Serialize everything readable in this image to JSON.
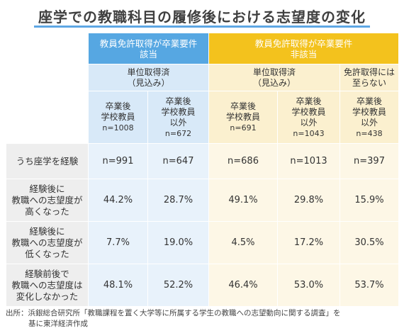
{
  "title": "座学での教職科目の履修後における志望度の変化",
  "groups": {
    "applicable": "教員免許取得が卒業要件\n該当",
    "not_applicable": "教員免許取得が卒業要件\n非該当"
  },
  "subgroups": {
    "blue_obtained": "単位取得済\n（見込み）",
    "yellow_obtained": "単位取得済\n（見込み）",
    "yellow_not": "免許取得には\n至らない"
  },
  "columns": [
    {
      "label": "卒業後\n学校教員",
      "n": "n=1008"
    },
    {
      "label": "卒業後\n学校教員\n以外",
      "n": "n=672"
    },
    {
      "label": "卒業後\n学校教員",
      "n": "n=691"
    },
    {
      "label": "卒業後\n学校教員\n以外",
      "n": "n=1043"
    },
    {
      "label": "卒業後\n学校教員\n以外",
      "n": "n=438"
    }
  ],
  "rows": [
    {
      "label": "うち座学を経験",
      "values": [
        "n=991",
        "n=647",
        "n=686",
        "n=1013",
        "n=397"
      ]
    },
    {
      "label": "経験後に\n教職への志望度が\n高くなった",
      "values": [
        "44.2%",
        "28.7%",
        "49.1%",
        "29.8%",
        "15.9%"
      ]
    },
    {
      "label": "経験後に\n教職への志望度が\n低くなった",
      "values": [
        "7.7%",
        "19.0%",
        "4.5%",
        "17.2%",
        "30.5%"
      ]
    },
    {
      "label": "経験前後で\n教職への志望度は\n変化しなかった",
      "values": [
        "48.1%",
        "52.2%",
        "46.4%",
        "53.0%",
        "53.7%"
      ]
    }
  ],
  "source_line1": "出所：浜銀総合研究所「教職課程を置く大学等に所属する学生の教職への志望動向に関する調査」を",
  "source_line2": "基に東洋経済作成",
  "colors": {
    "blue_header": "#56a7e2",
    "yellow_header": "#f3c21d",
    "title_underline": "#5ea7e4"
  }
}
